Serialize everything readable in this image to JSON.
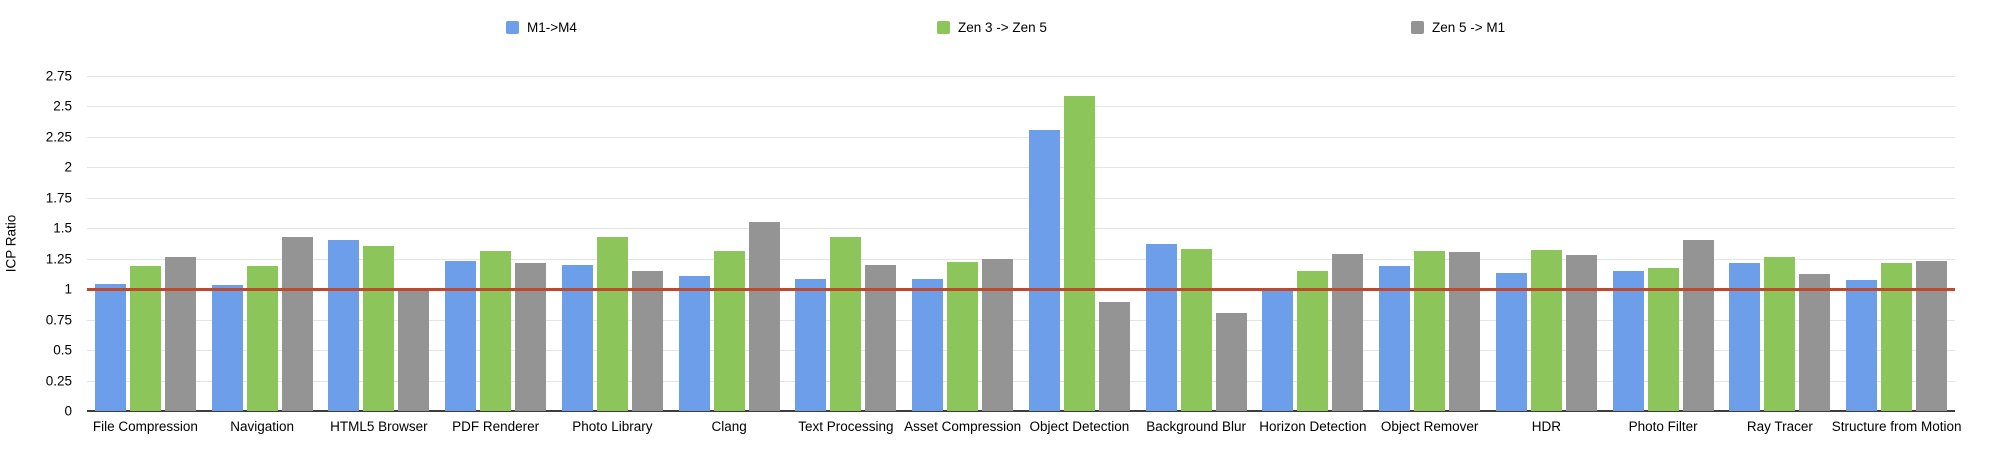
{
  "chart_data": {
    "type": "bar",
    "title": "",
    "xlabel": "",
    "ylabel": "ICP Ratio",
    "ylim": [
      0,
      2.75
    ],
    "ytick_labels": [
      "0",
      "0.25",
      "0.5",
      "0.75",
      "1",
      "1.25",
      "1.5",
      "1.75",
      "2",
      "2.25",
      "2.5",
      "2.75"
    ],
    "ytick_values": [
      0,
      0.25,
      0.5,
      0.75,
      1,
      1.25,
      1.5,
      1.75,
      2,
      2.25,
      2.5,
      2.75
    ],
    "grid": true,
    "legend_position": "top",
    "reference_line": {
      "value": 1.0,
      "color": "#c1492b"
    },
    "axis_color": "#3d3d3d",
    "gridline_color": "#e4e4e4",
    "categories": [
      "File Compression",
      "Navigation",
      "HTML5 Browser",
      "PDF Renderer",
      "Photo Library",
      "Clang",
      "Text Processing",
      "Asset Compression",
      "Object Detection",
      "Background Blur",
      "Horizon Detection",
      "Object Remover",
      "HDR",
      "Photo Filter",
      "Ray Tracer",
      "Structure from Motion"
    ],
    "series": [
      {
        "name": "M1->M4",
        "color": "#6d9eea",
        "values": [
          1.04,
          1.03,
          1.4,
          1.23,
          1.2,
          1.11,
          1.08,
          1.08,
          2.3,
          1.37,
          1.0,
          1.19,
          1.13,
          1.15,
          1.21,
          1.07
        ]
      },
      {
        "name": "Zen 3 -> Zen 5",
        "color": "#8cc65a",
        "values": [
          1.19,
          1.19,
          1.35,
          1.31,
          1.43,
          1.31,
          1.43,
          1.22,
          2.58,
          1.33,
          1.15,
          1.31,
          1.32,
          1.17,
          1.26,
          1.21
        ]
      },
      {
        "name": "Zen 5 -> M1",
        "color": "#949494",
        "values": [
          1.26,
          1.43,
          0.98,
          1.21,
          1.15,
          1.55,
          1.2,
          1.25,
          0.89,
          0.8,
          1.29,
          1.3,
          1.28,
          1.4,
          1.12,
          1.23
        ]
      }
    ]
  }
}
